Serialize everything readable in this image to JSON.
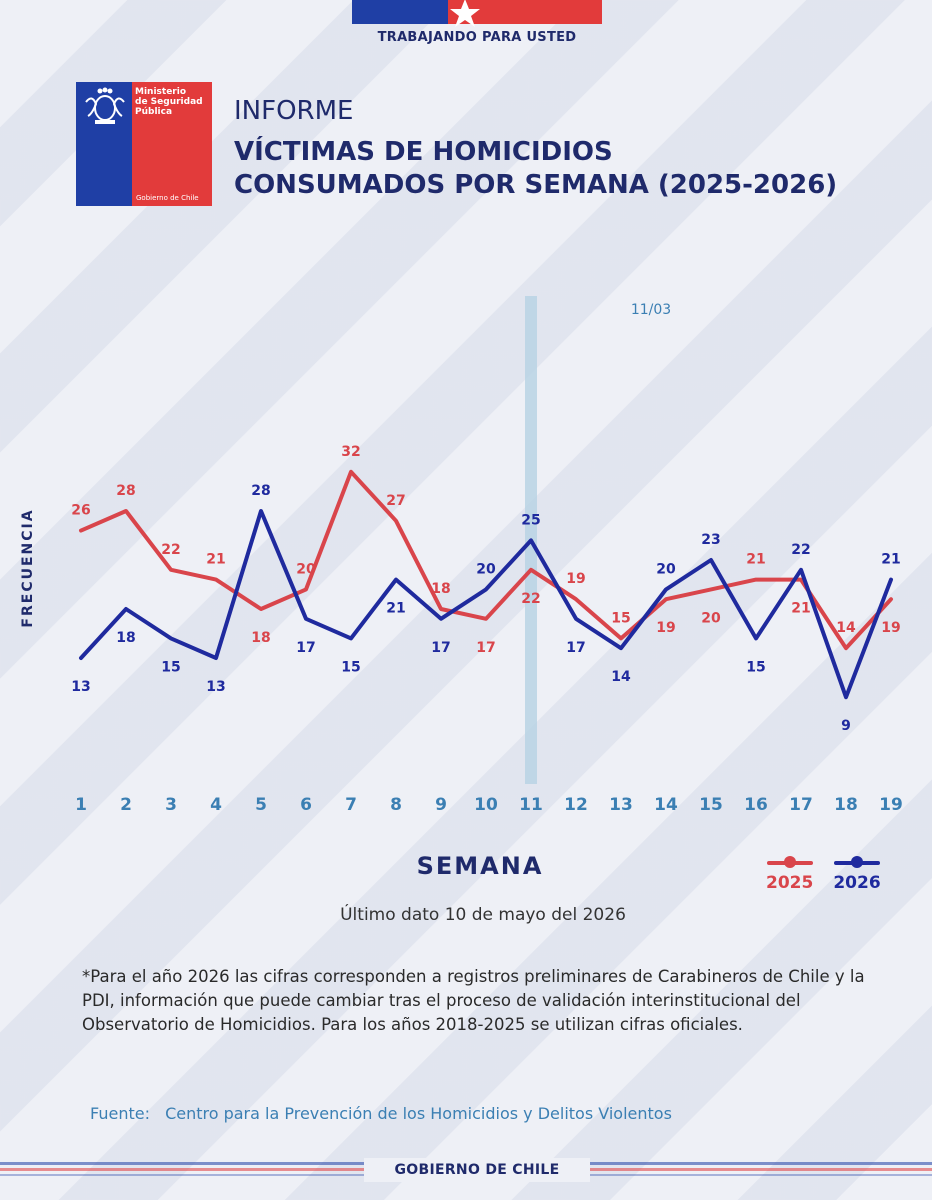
{
  "header": {
    "tagline": "TRABAJANDO PARA USTED",
    "logo": {
      "line1": "Ministerio",
      "line2": "de Seguridad",
      "line3": "Pública",
      "gob": "Gobierno de Chile"
    },
    "informe": "INFORME",
    "title_line1": "VÍCTIMAS DE HOMICIDIOS",
    "title_line2": "CONSUMADOS POR SEMANA (2025-2026)"
  },
  "colors": {
    "series_2025": "#d9454b",
    "series_2026": "#1f2a9e",
    "marker_band": "#b9d3e4",
    "tick": "#3b7fb3"
  },
  "chart_data": {
    "type": "line",
    "title": "VÍCTIMAS DE HOMICIDIOS CONSUMADOS POR SEMANA (2025-2026)",
    "xlabel": "SEMANA",
    "ylabel": "FRECUENCIA",
    "x": [
      1,
      2,
      3,
      4,
      5,
      6,
      7,
      8,
      9,
      10,
      11,
      12,
      13,
      14,
      15,
      16,
      17,
      18,
      19
    ],
    "marker": {
      "x": 11,
      "label": "11/03"
    },
    "grid": false,
    "legend_position": "bottom-right",
    "series": [
      {
        "name": "2025",
        "values": [
          26,
          28,
          22,
          21,
          18,
          20,
          32,
          27,
          18,
          17,
          22,
          19,
          15,
          19,
          20,
          21,
          21,
          14,
          19
        ]
      },
      {
        "name": "2026",
        "values": [
          13,
          18,
          15,
          13,
          28,
          17,
          15,
          21,
          17,
          20,
          25,
          17,
          14,
          20,
          23,
          15,
          22,
          9,
          21
        ]
      }
    ]
  },
  "footer": {
    "last_data": "Último dato 10 de mayo del 2026",
    "footnote": "*Para el año 2026 las cifras corresponden a registros preliminares de Carabineros de Chile y la PDI, información que puede cambiar tras el proceso de validación interinstitucional del Observatorio de Homicidios. Para los años 2018-2025 se utilizan cifras oficiales.",
    "source_label": "Fuente:",
    "source_text": "Centro para la Prevención de los Homicidios y Delitos Violentos",
    "gov": "GOBIERNO DE CHILE"
  }
}
